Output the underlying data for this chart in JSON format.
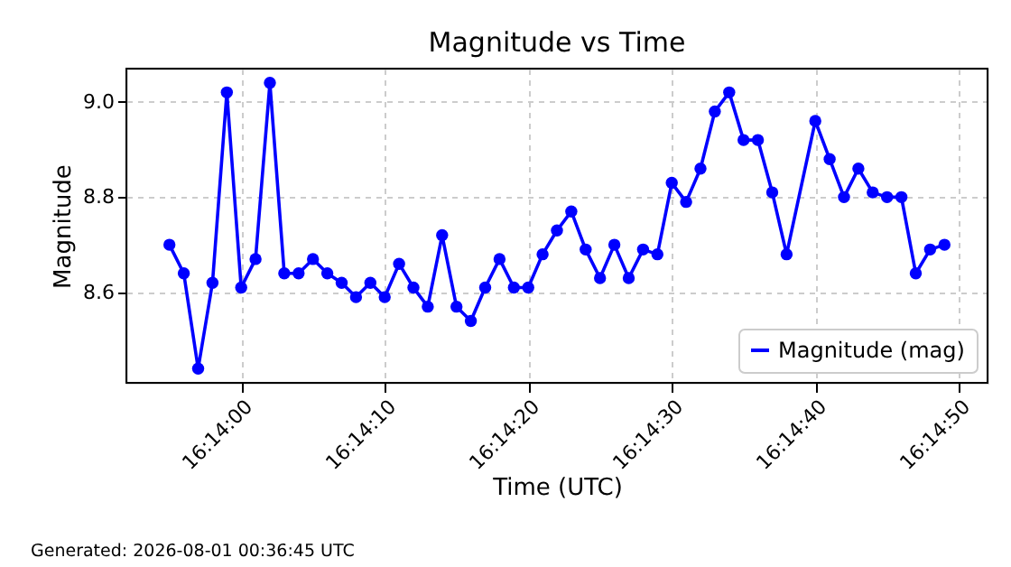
{
  "chart_data": {
    "type": "line",
    "title": "Magnitude vs Time",
    "xlabel": "Time (UTC)",
    "ylabel": "Magnitude",
    "x": [
      "2026-08-01T16:13:55",
      "2026-08-01T16:13:56",
      "2026-08-01T16:13:57",
      "2026-08-01T16:13:58",
      "2026-08-01T16:13:59",
      "2026-08-01T16:14:00",
      "2026-08-01T16:14:01",
      "2026-08-01T16:14:02",
      "2026-08-01T16:14:03",
      "2026-08-01T16:14:04",
      "2026-08-01T16:14:05",
      "2026-08-01T16:14:06",
      "2026-08-01T16:14:07",
      "2026-08-01T16:14:08",
      "2026-08-01T16:14:09",
      "2026-08-01T16:14:10",
      "2026-08-01T16:14:11",
      "2026-08-01T16:14:12",
      "2026-08-01T16:14:13",
      "2026-08-01T16:14:14",
      "2026-08-01T16:14:15",
      "2026-08-01T16:14:16",
      "2026-08-01T16:14:17",
      "2026-08-01T16:14:18",
      "2026-08-01T16:14:19",
      "2026-08-01T16:14:20",
      "2026-08-01T16:14:21",
      "2026-08-01T16:14:22",
      "2026-08-01T16:14:23",
      "2026-08-01T16:14:24",
      "2026-08-01T16:14:25",
      "2026-08-01T16:14:26",
      "2026-08-01T16:14:27",
      "2026-08-01T16:14:28",
      "2026-08-01T16:14:29",
      "2026-08-01T16:14:30",
      "2026-08-01T16:14:31",
      "2026-08-01T16:14:32",
      "2026-08-01T16:14:33",
      "2026-08-01T16:14:34",
      "2026-08-01T16:14:35",
      "2026-08-01T16:14:36",
      "2026-08-01T16:14:37",
      "2026-08-01T16:14:38",
      "2026-08-01T16:14:40",
      "2026-08-01T16:14:41",
      "2026-08-01T16:14:42",
      "2026-08-01T16:14:43",
      "2026-08-01T16:14:44",
      "2026-08-01T16:14:45",
      "2026-08-01T16:14:46",
      "2026-08-01T16:14:47",
      "2026-08-01T16:14:48",
      "2026-08-01T16:14:49"
    ],
    "series": [
      {
        "name": "Magnitude (mag)",
        "color": "#0000ff",
        "values": [
          8.7,
          8.64,
          8.44,
          8.62,
          9.02,
          8.61,
          8.67,
          9.04,
          8.64,
          8.64,
          8.67,
          8.64,
          8.62,
          8.59,
          8.62,
          8.59,
          8.66,
          8.61,
          8.57,
          8.72,
          8.57,
          8.54,
          8.61,
          8.67,
          8.61,
          8.61,
          8.68,
          8.73,
          8.77,
          8.69,
          8.63,
          8.7,
          8.63,
          8.69,
          8.68,
          8.83,
          8.79,
          8.86,
          8.98,
          9.02,
          8.92,
          8.92,
          8.81,
          8.68,
          8.96,
          8.88,
          8.8,
          8.86,
          8.81,
          8.8,
          8.8,
          8.64,
          8.69,
          8.7
        ]
      }
    ],
    "xlim": [
      "2026-08-01T16:13:52",
      "2026-08-01T16:14:52"
    ],
    "xticks": [
      {
        "value": "2026-08-01T16:14:00",
        "label": "16:14:00"
      },
      {
        "value": "2026-08-01T16:14:10",
        "label": "16:14:10"
      },
      {
        "value": "2026-08-01T16:14:20",
        "label": "16:14:20"
      },
      {
        "value": "2026-08-01T16:14:30",
        "label": "16:14:30"
      },
      {
        "value": "2026-08-01T16:14:40",
        "label": "16:14:40"
      },
      {
        "value": "2026-08-01T16:14:50",
        "label": "16:14:50"
      }
    ],
    "ylim": [
      8.41,
      9.07
    ],
    "yticks": [
      8.6,
      8.8,
      {
        "value": 9,
        "label": "9.0"
      }
    ],
    "grid": true,
    "legend": "bottom right",
    "marker": "circle",
    "line_style": "solid",
    "annotations": [
      "Generated: 2026-08-01 00:36:45 UTC"
    ]
  }
}
